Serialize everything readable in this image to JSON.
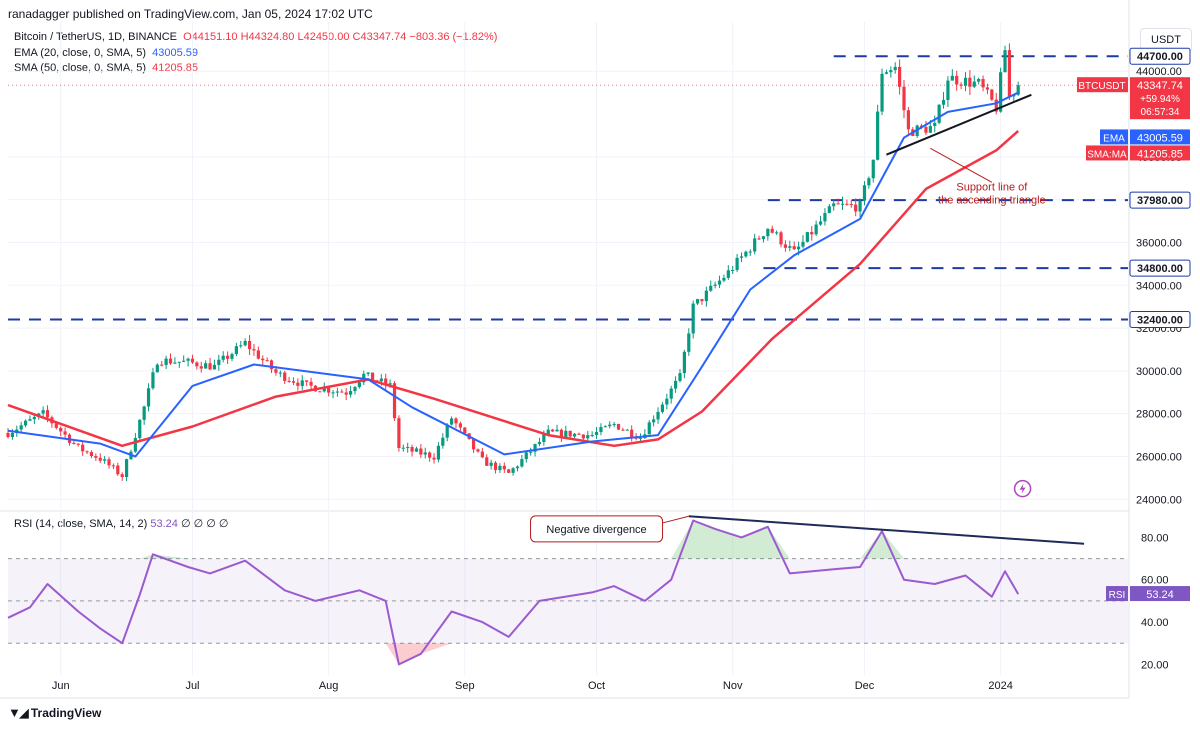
{
  "publisher": "ranadagger published on TradingView.com, Jan 05, 2024 17:02 UTC",
  "legend": {
    "symbol": "Bitcoin / TetherUS, 1D, BINANCE",
    "ohlc": "O44151.10 H44324.80 L42450.00 C43347.74 −803.36 (−1.82%)",
    "ema_label": "EMA (20, close, 0, SMA, 5)",
    "ema_value": "43005.59",
    "sma_label": "SMA (50, close, 0, SMA, 5)",
    "sma_value": "41205.85"
  },
  "currency": "USDT",
  "rsi_legend": {
    "label": "RSI (14, close, SMA, 14, 2)",
    "value": "53.24",
    "extras": "∅ ∅ ∅ ∅"
  },
  "footer": "TradingView",
  "colors": {
    "up": "#089981",
    "down": "#f23645",
    "ema": "#2962ff",
    "sma": "#f23645",
    "rsi": "#9c5ad0",
    "level": "#1e3aa6",
    "annotation": "#b71c1c"
  },
  "chart_data": {
    "type": "candlestick",
    "symbol": "BTCUSDT",
    "timeframe": "1D",
    "price_axis": {
      "ylim": [
        23500,
        46300
      ],
      "ticks": [
        "24000.00",
        "26000.00",
        "28000.00",
        "30000.00",
        "32000.00",
        "34000.00",
        "36000.00",
        "38000.00",
        "40000.00",
        "44000.00"
      ]
    },
    "x_labels": [
      {
        "label": "Jun",
        "date": "2023-06-01"
      },
      {
        "label": "Jul",
        "date": "2023-07-01"
      },
      {
        "label": "Aug",
        "date": "2023-08-01"
      },
      {
        "label": "Sep",
        "date": "2023-09-01"
      },
      {
        "label": "Oct",
        "date": "2023-10-01"
      },
      {
        "label": "Nov",
        "date": "2023-11-01"
      },
      {
        "label": "Dec",
        "date": "2023-12-01"
      },
      {
        "label": "2024",
        "date": "2024-01-01"
      }
    ],
    "x_range": [
      "2023-05-20",
      "2024-01-30"
    ],
    "price_path": [
      [
        "2023-05-20",
        27100
      ],
      [
        "2023-05-28",
        28000
      ],
      [
        "2023-06-05",
        26400
      ],
      [
        "2023-06-10",
        25900
      ],
      [
        "2023-06-15",
        25100
      ],
      [
        "2023-06-20",
        28300
      ],
      [
        "2023-06-23",
        30500
      ],
      [
        "2023-06-30",
        30400
      ],
      [
        "2023-07-06",
        30200
      ],
      [
        "2023-07-13",
        31300
      ],
      [
        "2023-07-20",
        29900
      ],
      [
        "2023-07-27",
        29300
      ],
      [
        "2023-08-05",
        29000
      ],
      [
        "2023-08-09",
        29800
      ],
      [
        "2023-08-15",
        29300
      ],
      [
        "2023-08-17",
        26400
      ],
      [
        "2023-08-25",
        26000
      ],
      [
        "2023-08-29",
        27800
      ],
      [
        "2023-09-05",
        25800
      ],
      [
        "2023-09-11",
        25200
      ],
      [
        "2023-09-20",
        27100
      ],
      [
        "2023-09-30",
        27000
      ],
      [
        "2023-10-05",
        27500
      ],
      [
        "2023-10-11",
        26900
      ],
      [
        "2023-10-16",
        28500
      ],
      [
        "2023-10-20",
        29700
      ],
      [
        "2023-10-23",
        33000
      ],
      [
        "2023-10-31",
        34600
      ],
      [
        "2023-11-09",
        36700
      ],
      [
        "2023-11-15",
        35500
      ],
      [
        "2023-11-24",
        37700
      ],
      [
        "2023-11-30",
        37700
      ],
      [
        "2023-12-03",
        39900
      ],
      [
        "2023-12-05",
        44000
      ],
      [
        "2023-12-08",
        44200
      ],
      [
        "2023-12-11",
        41200
      ],
      [
        "2023-12-17",
        41400
      ],
      [
        "2023-12-20",
        43700
      ],
      [
        "2023-12-27",
        43400
      ],
      [
        "2023-12-31",
        42300
      ],
      [
        "2024-01-02",
        45000
      ],
      [
        "2024-01-03",
        42800
      ],
      [
        "2024-01-05",
        43347.74
      ]
    ],
    "ema20_path": [
      [
        "2023-05-20",
        27200
      ],
      [
        "2023-06-10",
        26600
      ],
      [
        "2023-06-18",
        26000
      ],
      [
        "2023-07-01",
        29300
      ],
      [
        "2023-07-15",
        30300
      ],
      [
        "2023-08-10",
        29600
      ],
      [
        "2023-08-20",
        28300
      ],
      [
        "2023-09-10",
        26100
      ],
      [
        "2023-09-30",
        26700
      ],
      [
        "2023-10-15",
        27000
      ],
      [
        "2023-10-25",
        30200
      ],
      [
        "2023-11-05",
        33800
      ],
      [
        "2023-11-15",
        35400
      ],
      [
        "2023-11-30",
        37100
      ],
      [
        "2023-12-10",
        40900
      ],
      [
        "2023-12-20",
        42100
      ],
      [
        "2023-12-31",
        42500
      ],
      [
        "2024-01-05",
        43005.59
      ]
    ],
    "sma50_path": [
      [
        "2023-05-20",
        28400
      ],
      [
        "2023-06-15",
        26500
      ],
      [
        "2023-07-01",
        27400
      ],
      [
        "2023-07-20",
        28800
      ],
      [
        "2023-08-10",
        29600
      ],
      [
        "2023-08-25",
        28700
      ],
      [
        "2023-09-20",
        27000
      ],
      [
        "2023-10-05",
        26500
      ],
      [
        "2023-10-15",
        26800
      ],
      [
        "2023-10-25",
        28100
      ],
      [
        "2023-11-10",
        31500
      ],
      [
        "2023-11-30",
        35000
      ],
      [
        "2023-12-15",
        38500
      ],
      [
        "2023-12-31",
        40300
      ],
      [
        "2024-01-05",
        41205.85
      ]
    ],
    "levels": [
      {
        "label": "44700.00",
        "value": 44700,
        "from": "2023-11-24"
      },
      {
        "label": "37980.00",
        "value": 37980,
        "from": "2023-11-09"
      },
      {
        "label": "34800.00",
        "value": 34800,
        "from": "2023-11-08"
      },
      {
        "label": "32400.00",
        "value": 32400,
        "from": "2023-05-20"
      }
    ],
    "support_line": {
      "from": [
        "2023-12-06",
        40100
      ],
      "to": [
        "2024-01-08",
        42900
      ]
    },
    "annotations": {
      "support": "Support line of the ascending triangle",
      "divergence": "Negative divergence"
    },
    "price_tags": {
      "btc_label": "BTCUSDT",
      "btc_value": "43347.74",
      "btc_change": "+59.94%",
      "btc_countdown": "06:57:34",
      "ema_label": "EMA",
      "ema_value": "43005.59",
      "sma_label": "SMA:MA",
      "sma_value": "41205.85"
    },
    "rsi": {
      "ylim": [
        15,
        92
      ],
      "ticks": [
        "20.00",
        "40.00",
        "60.00",
        "80.00"
      ],
      "band": [
        30,
        70
      ],
      "value_label": "53.24",
      "tag_label": "RSI",
      "path": [
        [
          "2023-05-20",
          42
        ],
        [
          "2023-05-25",
          47
        ],
        [
          "2023-05-29",
          58
        ],
        [
          "2023-06-05",
          45
        ],
        [
          "2023-06-10",
          37
        ],
        [
          "2023-06-15",
          30
        ],
        [
          "2023-06-19",
          53
        ],
        [
          "2023-06-22",
          72
        ],
        [
          "2023-06-30",
          66
        ],
        [
          "2023-07-05",
          63
        ],
        [
          "2023-07-13",
          69
        ],
        [
          "2023-07-22",
          55
        ],
        [
          "2023-07-29",
          50
        ],
        [
          "2023-08-08",
          55
        ],
        [
          "2023-08-14",
          50
        ],
        [
          "2023-08-17",
          20
        ],
        [
          "2023-08-22",
          25
        ],
        [
          "2023-08-29",
          45
        ],
        [
          "2023-09-05",
          40
        ],
        [
          "2023-09-11",
          33
        ],
        [
          "2023-09-18",
          50
        ],
        [
          "2023-09-30",
          54
        ],
        [
          "2023-10-05",
          57
        ],
        [
          "2023-10-12",
          50
        ],
        [
          "2023-10-18",
          60
        ],
        [
          "2023-10-23",
          88
        ],
        [
          "2023-10-28",
          84
        ],
        [
          "2023-11-03",
          80
        ],
        [
          "2023-11-09",
          85
        ],
        [
          "2023-11-14",
          63
        ],
        [
          "2023-11-24",
          65
        ],
        [
          "2023-11-30",
          66
        ],
        [
          "2023-12-05",
          83
        ],
        [
          "2023-12-10",
          60
        ],
        [
          "2023-12-17",
          58
        ],
        [
          "2023-12-24",
          62
        ],
        [
          "2023-12-30",
          52
        ],
        [
          "2024-01-02",
          64
        ],
        [
          "2024-01-05",
          53.24
        ]
      ],
      "divergence_line": {
        "from": [
          "2023-10-22",
          90
        ],
        "to": [
          "2024-01-20",
          77
        ]
      }
    }
  }
}
